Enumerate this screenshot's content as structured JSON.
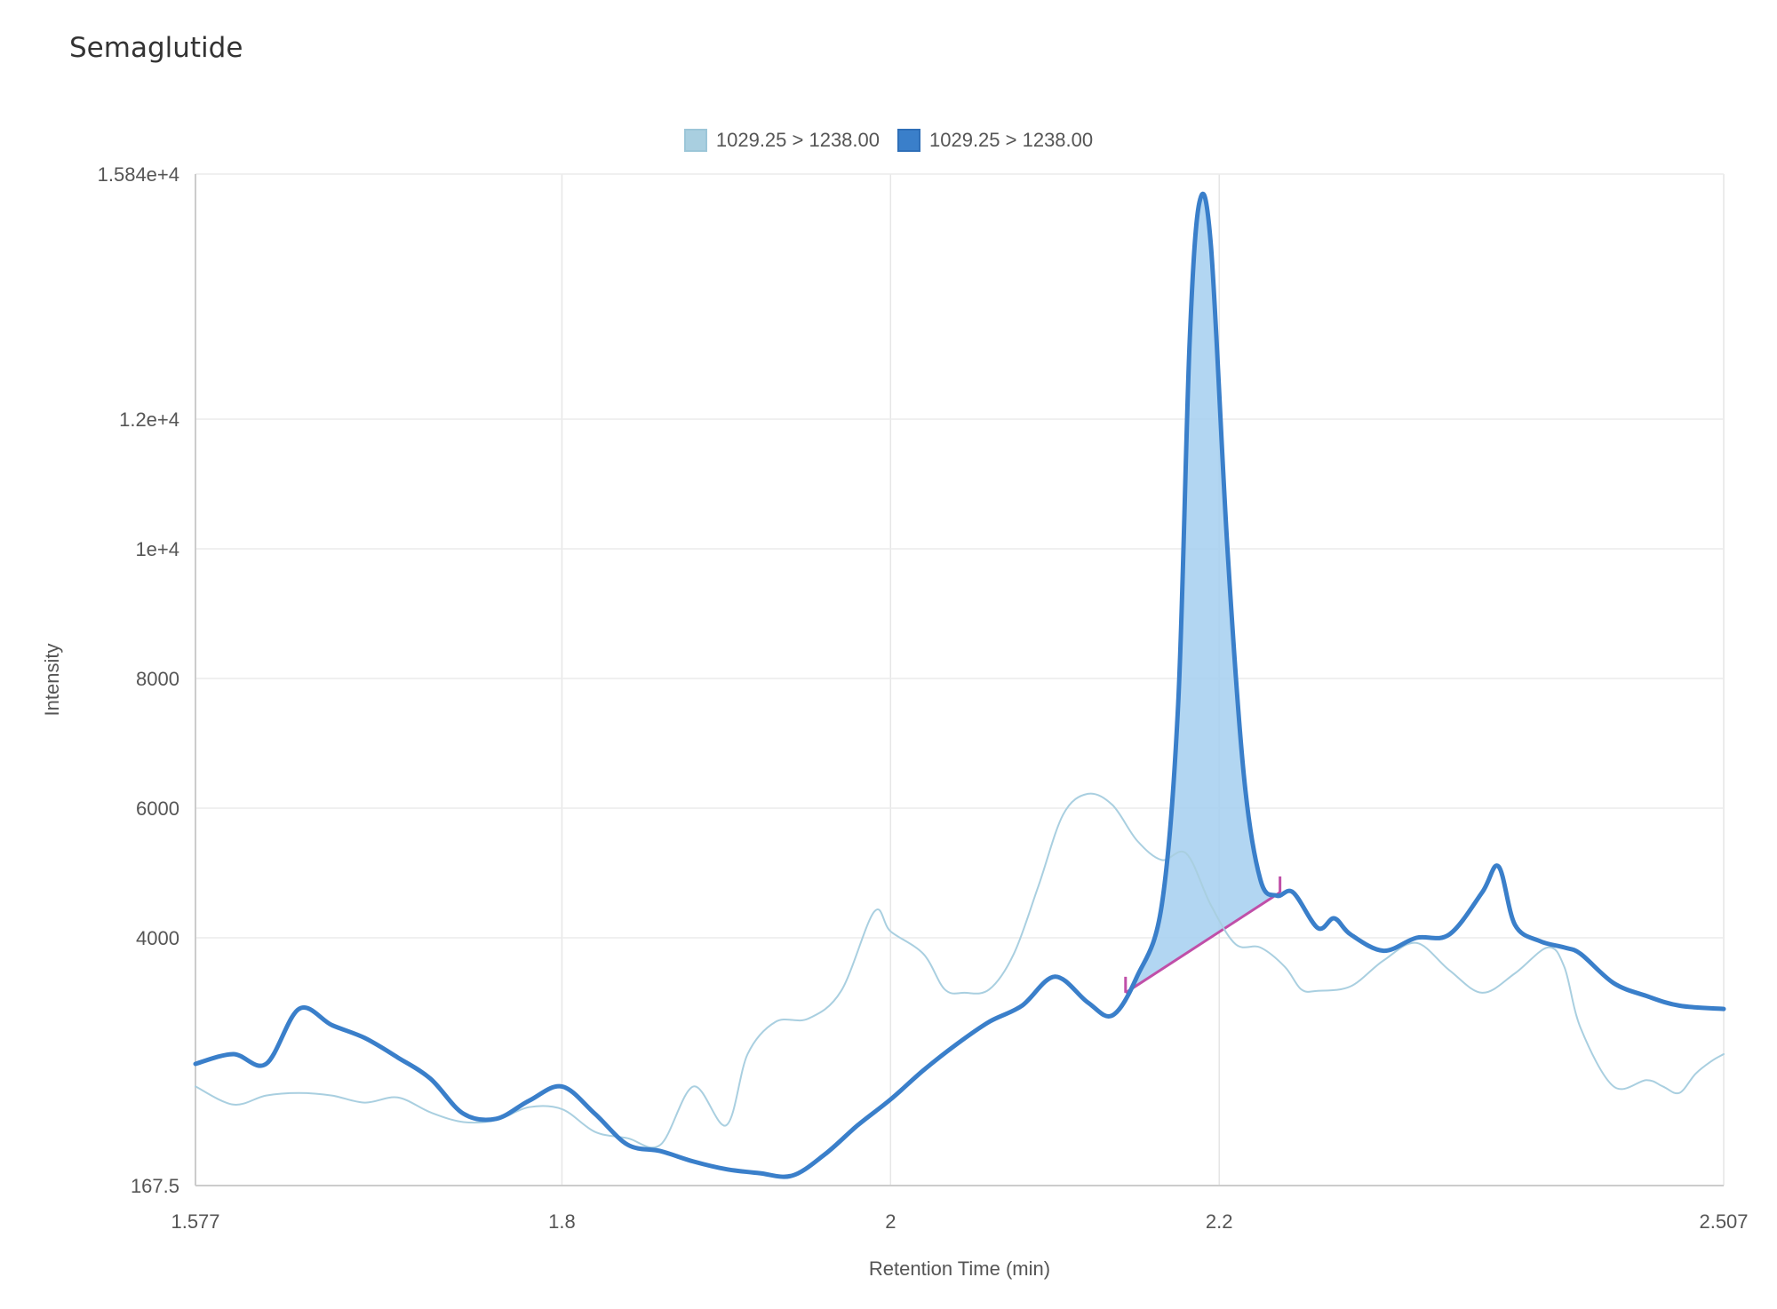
{
  "page": {
    "title": "Semaglutide"
  },
  "chart_data": {
    "type": "line",
    "title": "Semaglutide",
    "xlabel": "Retention Time (min)",
    "ylabel": "Intensity",
    "xlim": [
      1.577,
      2.507
    ],
    "ylim": [
      167.5,
      15840
    ],
    "x_ticks": [
      1.577,
      1.8,
      2,
      2.2,
      2.507
    ],
    "x_tick_labels": [
      "1.577",
      "1.8",
      "2",
      "2.2",
      "2.507"
    ],
    "y_ticks": [
      167.5,
      4000,
      6000,
      8000,
      10000,
      12000,
      15840
    ],
    "y_tick_labels": [
      "167.5",
      "4000",
      "6000",
      "8000",
      "1e+4",
      "1.2e+4",
      "1.584e+4"
    ],
    "grid": true,
    "legend_position": "top-center",
    "series": [
      {
        "name": "1029.25 > 1238.00",
        "color": "#a9cfe0",
        "style": "thin",
        "x": [
          1.577,
          1.6,
          1.62,
          1.64,
          1.66,
          1.68,
          1.7,
          1.72,
          1.74,
          1.76,
          1.78,
          1.8,
          1.82,
          1.84,
          1.86,
          1.88,
          1.9,
          1.913,
          1.93,
          1.95,
          1.97,
          1.99,
          2.0,
          2.02,
          2.033,
          2.045,
          2.06,
          2.075,
          2.09,
          2.105,
          2.12,
          2.135,
          2.15,
          2.165,
          2.18,
          2.195,
          2.21,
          2.225,
          2.24,
          2.25,
          2.26,
          2.28,
          2.3,
          2.32,
          2.34,
          2.36,
          2.38,
          2.4,
          2.41,
          2.42,
          2.44,
          2.46,
          2.47,
          2.48,
          2.49,
          2.5,
          2.507
        ],
        "y": [
          1700,
          1420,
          1560,
          1600,
          1560,
          1450,
          1530,
          1300,
          1150,
          1180,
          1380,
          1350,
          1000,
          900,
          800,
          1700,
          1100,
          2200,
          2700,
          2750,
          3180,
          4400,
          4100,
          3750,
          3200,
          3150,
          3200,
          3750,
          4800,
          5900,
          6220,
          6050,
          5500,
          5200,
          5300,
          4500,
          3900,
          3850,
          3550,
          3200,
          3180,
          3250,
          3650,
          3920,
          3500,
          3150,
          3450,
          3850,
          3550,
          2600,
          1700,
          1800,
          1700,
          1600,
          1900,
          2100,
          2200
        ],
        "x_full": [
          1.577,
          1.6,
          1.62,
          1.64,
          1.66,
          1.68,
          1.7,
          1.72,
          1.74,
          1.76,
          1.78,
          1.8,
          1.82,
          1.84,
          1.86,
          1.88,
          1.9,
          1.913,
          1.93,
          1.95,
          1.97,
          1.99,
          2.0,
          2.02,
          2.033,
          2.045,
          2.06,
          2.075,
          2.09,
          2.105,
          2.12,
          2.135,
          2.15,
          2.165,
          2.18,
          2.195,
          2.21,
          2.225,
          2.24,
          2.25,
          2.26,
          2.28,
          2.3,
          2.32,
          2.34,
          2.36,
          2.38,
          2.4,
          2.41,
          2.42,
          2.44,
          2.46,
          2.47,
          2.48,
          2.49,
          2.5,
          2.507
        ]
      },
      {
        "name": "1029.25 > 1238.00",
        "color": "#3a7fca",
        "style": "thick",
        "x": [
          1.577,
          1.6,
          1.62,
          1.64,
          1.66,
          1.68,
          1.7,
          1.72,
          1.74,
          1.76,
          1.78,
          1.8,
          1.82,
          1.84,
          1.86,
          1.88,
          1.9,
          1.92,
          1.94,
          1.96,
          1.98,
          2.0,
          2.02,
          2.04,
          2.06,
          2.08,
          2.1,
          2.12,
          2.135,
          2.15,
          2.165,
          2.175,
          2.182,
          2.188,
          2.195,
          2.205,
          2.215,
          2.225,
          2.235,
          2.245,
          2.26,
          2.27,
          2.28,
          2.3,
          2.32,
          2.34,
          2.36,
          2.37,
          2.38,
          2.395,
          2.41,
          2.42,
          2.44,
          2.46,
          2.48,
          2.507
        ],
        "y": [
          2050,
          2200,
          2050,
          2900,
          2650,
          2450,
          2150,
          1820,
          1280,
          1200,
          1480,
          1700,
          1280,
          800,
          700,
          540,
          420,
          360,
          320,
          650,
          1100,
          1500,
          1950,
          2350,
          2700,
          2950,
          3400,
          3000,
          2800,
          3400,
          4500,
          7600,
          13200,
          15400,
          14700,
          10000,
          6500,
          4900,
          4650,
          4700,
          4150,
          4300,
          4050,
          3800,
          4000,
          4050,
          4700,
          5100,
          4200,
          3950,
          3850,
          3750,
          3300,
          3100,
          2950,
          2900
        ]
      }
    ],
    "integrated_peak": {
      "series": 1,
      "x_start": 2.143,
      "x_end": 2.237,
      "y_start": 3150,
      "y_end": 4700,
      "baseline_color": "#c04fa8",
      "fill_color": "#a5cff0"
    }
  }
}
